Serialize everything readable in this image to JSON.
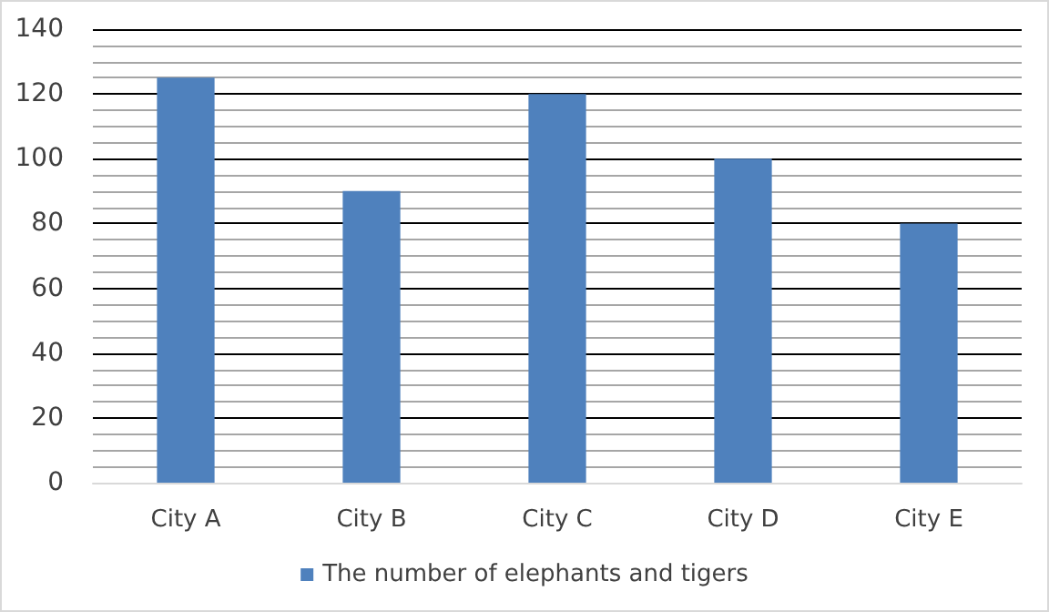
{
  "chart_data": {
    "type": "bar",
    "categories": [
      "City A",
      "City B",
      "City C",
      "City D",
      "City E"
    ],
    "series": [
      {
        "name": "The number of elephants and tigers",
        "color": "#4f81bd",
        "values": [
          125,
          90,
          120,
          100,
          80
        ]
      }
    ],
    "ylim": [
      0,
      140
    ],
    "yticks": [
      0,
      20,
      40,
      60,
      80,
      100,
      120,
      140
    ],
    "grid": "y",
    "legend": "bottom"
  }
}
